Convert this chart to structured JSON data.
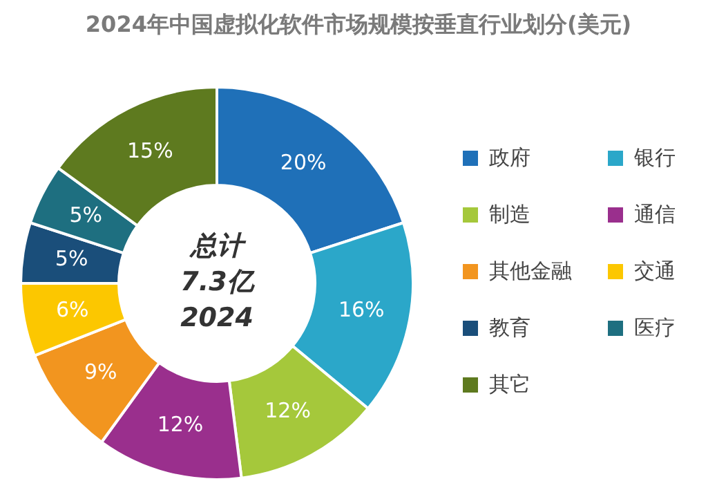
{
  "chart_data": {
    "type": "donut",
    "title": "2024年中国虚拟化软件市场规模按垂直行业划分(美元)",
    "categories": [
      "政府",
      "银行",
      "制造",
      "通信",
      "其他金融",
      "交通",
      "教育",
      "医疗",
      "其它"
    ],
    "values": [
      20,
      16,
      12,
      12,
      9,
      6,
      5,
      5,
      15
    ],
    "colors": [
      "#1f70b8",
      "#2ba7c9",
      "#a5c83b",
      "#9a2f8d",
      "#f2951f",
      "#fcc700",
      "#1a4e7a",
      "#1e6f80",
      "#5e7a1f"
    ],
    "value_labels": [
      "20%",
      "16%",
      "12%",
      "12%",
      "9%",
      "6%",
      "5%",
      "5%",
      "15%"
    ],
    "legend": "right",
    "annotations": [
      "总计",
      "7.3亿",
      "2024"
    ]
  }
}
